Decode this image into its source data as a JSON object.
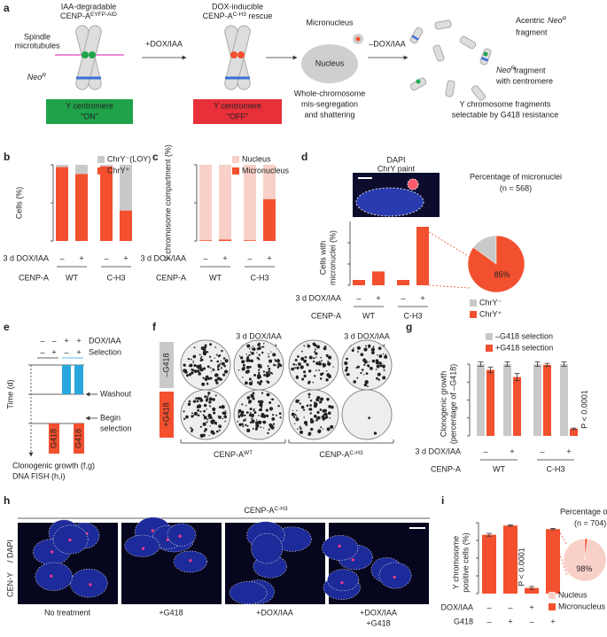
{
  "a": {
    "label": "a",
    "cenpa_title": [
      "IAA-degradable",
      {
        "text": "CENP-A",
        "sup": "EYFP-AID"
      }
    ],
    "spindle": [
      "Spindle",
      "microtubules"
    ],
    "neo": {
      "text": "Neo",
      "sup": "R"
    },
    "on_box": [
      "Y centromere",
      "“ON”"
    ],
    "step1": "+DOX/IAA",
    "rescue_title": [
      "DOX-inducible",
      {
        "text": "CENP-A",
        "sup": "C-H3",
        "after": " rescue"
      }
    ],
    "off_box": [
      "Y centromere",
      "“OFF”"
    ],
    "micronucleus": "Micronucleus",
    "nucleus": "Nucleus",
    "missegregation": [
      "Whole-chromosome",
      "mis-segregation",
      "and shattering"
    ],
    "step3": "–DOX/IAA",
    "acentric": [
      {
        "text": "Acentric ",
        "after": ""
      },
      {
        "text": "Neo",
        "sup": "R"
      },
      "fragment"
    ],
    "centric": [
      {
        "text": "Neo",
        "sup": "R"
      },
      "fragment",
      "with centromere"
    ],
    "result": [
      "Y chromosome fragments",
      "selectable by G418 resistance"
    ]
  },
  "b": {
    "label": "b",
    "ylabel": "Cells (%)",
    "ylim": [
      0,
      100
    ],
    "yticks": [
      0,
      50,
      100
    ],
    "stacked": true,
    "series": [
      {
        "name": "ChrY⁺",
        "color": "#f2502f",
        "values": [
          97,
          88,
          98,
          40
        ]
      },
      {
        "name": "ChrY⁻(LOY)",
        "color": "#c9c9c9",
        "values": [
          3,
          12,
          2,
          60
        ]
      }
    ],
    "treatment_label": "3 d DOX/IAA",
    "treatment": [
      "–",
      "+",
      "–",
      "+"
    ],
    "cenpa_label": "CENP-A",
    "cenpa": [
      "WT",
      "C-H3"
    ]
  },
  "c": {
    "label": "c",
    "ylabel": "Y chromosome compartment (%)",
    "ylim": [
      0,
      100
    ],
    "yticks": [
      0,
      50,
      100
    ],
    "stacked": true,
    "series": [
      {
        "name": "Micronucleus",
        "color": "#f2502f",
        "values": [
          1,
          2,
          1,
          55
        ]
      },
      {
        "name": "Nucleus",
        "color": "#f9d0c8",
        "values": [
          99,
          98,
          99,
          45
        ]
      }
    ],
    "treatment_label": "3 d DOX/IAA",
    "treatment": [
      "–",
      "+",
      "–",
      "+"
    ],
    "cenpa_label": "CENP-A",
    "cenpa": [
      "WT",
      "C-H3"
    ]
  },
  "d": {
    "label": "d",
    "ylabel": [
      "Cells with",
      "micronuclei (%)"
    ],
    "ylim": [
      0,
      30
    ],
    "yticks": [
      0,
      10,
      20
    ],
    "color": "#f2502f",
    "values": [
      2.5,
      6.5,
      2.5,
      27.5
    ],
    "image_labels": [
      "DAPI",
      "ChrY paint"
    ],
    "treatment_label": "3 d DOX/IAA",
    "treatment": [
      "–",
      "+",
      "–",
      "+"
    ],
    "cenpa_label": "CENP-A",
    "cenpa": [
      "WT",
      "C-H3"
    ],
    "pie": {
      "title": "Percentage of micronuclei",
      "n": "(n = 568)",
      "slices": [
        {
          "name": "ChrY⁻",
          "color": "#c9c9c9",
          "value": 15
        },
        {
          "name": "ChrY⁺",
          "color": "#f2502f",
          "value": 85,
          "value_label": "85%"
        }
      ]
    }
  },
  "e": {
    "label": "e",
    "legend_rows": [
      {
        "label": "DOX/IAA",
        "plus_color": "#2aa7df",
        "symbols": [
          "–",
          "–",
          "+",
          "+"
        ]
      },
      {
        "label": "Selection",
        "plus_color": "#f2502f",
        "symbols": [
          "–",
          "+",
          "–",
          "+"
        ]
      }
    ],
    "ylabel": "Time (d)",
    "ylim": [
      0,
      9
    ],
    "yticks": [
      0,
      3,
      6
    ],
    "washout": "Washout",
    "begin": [
      "Begin",
      "selection"
    ],
    "g418": "G418",
    "outcomes": [
      "Clonogenic growth (f,g)",
      "DNA FISH (h,i)"
    ]
  },
  "f": {
    "label": "f",
    "col_headers": [
      "–",
      [
        "3 d DOX/IAA",
        "+ washout"
      ],
      "–",
      [
        "3 d DOX/IAA",
        "+ washout"
      ]
    ],
    "row_labels": [
      "–G418",
      "+G418"
    ],
    "groups": [
      {
        "text": "CENP-A",
        "sup": "WT"
      },
      {
        "text": "CENP-A",
        "sup": "C-H3"
      }
    ]
  },
  "g": {
    "label": "g",
    "ylabel": [
      "Clonogenic growth",
      "(percentage of –G418)"
    ],
    "ylim": [
      0,
      100
    ],
    "yticks": [
      0,
      25,
      50,
      75,
      100
    ],
    "series": [
      {
        "name": "–G418 selection",
        "color": "#c9c9c9",
        "values": [
          100,
          100,
          100,
          100
        ],
        "errors": [
          3,
          3,
          3,
          3
        ]
      },
      {
        "name": "+G418 selection",
        "color": "#f2502f",
        "values": [
          92,
          82,
          99,
          10
        ],
        "errors": [
          4,
          5,
          2,
          1
        ]
      }
    ],
    "annotation": "P < 0.0001",
    "treatment_label": "3 d DOX/IAA",
    "treatment": [
      "–",
      "+",
      "–",
      "+"
    ],
    "cenpa_label": "CENP-A",
    "cenpa": [
      "WT",
      "C-H3"
    ]
  },
  "h": {
    "label": "h",
    "title": {
      "text": "CENP-A",
      "sup": "C-H3"
    },
    "side_label": [
      "CEN-Y",
      "/ DAPI"
    ],
    "captions": [
      [
        "No treatment"
      ],
      [
        "+G418"
      ],
      [
        "+DOX/IAA"
      ],
      [
        "+DOX/IAA",
        "+G418"
      ]
    ]
  },
  "i": {
    "label": "i",
    "ylabel": [
      "Y chromosome",
      "positive cells (%)"
    ],
    "ylim": [
      0,
      100
    ],
    "yticks": [
      0,
      25,
      50,
      75,
      100
    ],
    "color": "#f2502f",
    "values": [
      83,
      96,
      8,
      91
    ],
    "errors": [
      2,
      1,
      2,
      1
    ],
    "annotation": "P < 0.0001",
    "rows": [
      {
        "label": "DOX/IAA",
        "symbols": [
          "–",
          "–",
          "+",
          "+"
        ]
      },
      {
        "label": "G418",
        "symbols": [
          "–",
          "+",
          "–",
          "+"
        ]
      }
    ],
    "pie": {
      "title": "Percentage of chrY",
      "n": "(n = 704)",
      "slices": [
        {
          "name": "Nucleus",
          "color": "#f9d0c8",
          "value": 98,
          "value_label": "98%"
        },
        {
          "name": "Micronucleus",
          "color": "#f2502f",
          "value": 2
        }
      ]
    }
  }
}
